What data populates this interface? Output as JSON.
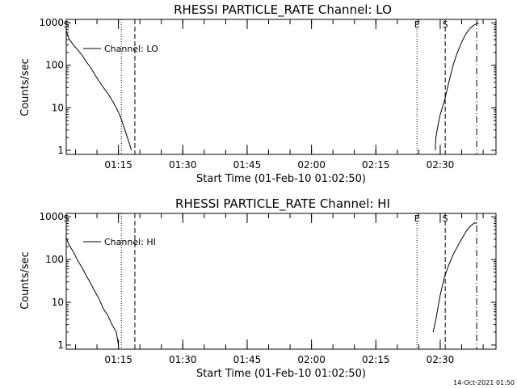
{
  "chart_data": [
    {
      "type": "line",
      "title": "RHESSI PARTICLE_RATE Channel: LO",
      "xlabel": "Start Time (01-Feb-10 01:02:50)",
      "ylabel": "Counts/sec",
      "ylog": true,
      "xlim": [
        "01:02:50",
        "02:43:00"
      ],
      "ylim": [
        0.8,
        1200
      ],
      "xticks": [
        "01:15",
        "01:30",
        "01:45",
        "02:00",
        "02:15",
        "02:30"
      ],
      "yticks": [
        "1",
        "10",
        "100",
        "1000"
      ],
      "legend": {
        "entries": [
          "Channel: LO"
        ],
        "position": "top-left"
      },
      "series": [
        {
          "name": "Channel: LO",
          "segments": [
            [
              [
                "01:02:50",
                650
              ],
              [
                "01:03:30",
                420
              ],
              [
                "01:04:30",
                300
              ],
              [
                "01:05:30",
                230
              ],
              [
                "01:06:30",
                175
              ],
              [
                "01:07:30",
                120
              ],
              [
                "01:08:30",
                90
              ],
              [
                "01:09:30",
                60
              ],
              [
                "01:10:30",
                42
              ],
              [
                "01:11:30",
                30
              ],
              [
                "01:12:30",
                22
              ],
              [
                "01:13:30",
                15
              ],
              [
                "01:14:30",
                10
              ],
              [
                "01:15:30",
                6
              ],
              [
                "01:16:30",
                3
              ],
              [
                "01:17:30",
                1.5
              ],
              [
                "01:18:00",
                1
              ]
            ],
            [
              [
                "02:28:50",
                1
              ],
              [
                "02:29:00",
                2
              ],
              [
                "02:29:30",
                4
              ],
              [
                "02:30:00",
                7
              ],
              [
                "02:31:00",
                15
              ],
              [
                "02:32:00",
                40
              ],
              [
                "02:33:00",
                100
              ],
              [
                "02:34:00",
                200
              ],
              [
                "02:35:00",
                350
              ],
              [
                "02:36:00",
                550
              ],
              [
                "02:37:00",
                750
              ],
              [
                "02:38:00",
                900
              ],
              [
                "02:39:00",
                1000
              ]
            ]
          ]
        }
      ],
      "markers": [
        {
          "label": "S",
          "time": "01:02:50",
          "style": "dashdot"
        },
        {
          "label": "",
          "time": "01:15:40",
          "style": "dotted"
        },
        {
          "label": "",
          "time": "01:18:50",
          "style": "dashed"
        },
        {
          "label": "E",
          "time": "02:24:35",
          "style": "dotted"
        },
        {
          "label": "S",
          "time": "02:31:10",
          "style": "dashed"
        },
        {
          "label": "",
          "time": "02:38:30",
          "style": "dashdot"
        }
      ]
    },
    {
      "type": "line",
      "title": "RHESSI PARTICLE_RATE Channel: HI",
      "xlabel": "Start Time (01-Feb-10 01:02:50)",
      "ylabel": "Counts/sec",
      "ylog": true,
      "xlim": [
        "01:02:50",
        "02:43:00"
      ],
      "ylim": [
        0.8,
        1200
      ],
      "xticks": [
        "01:15",
        "01:30",
        "01:45",
        "02:00",
        "02:15",
        "02:30"
      ],
      "yticks": [
        "1",
        "10",
        "100",
        "1000"
      ],
      "legend": {
        "entries": [
          "Channel: HI"
        ],
        "position": "top-left"
      },
      "series": [
        {
          "name": "Channel: HI",
          "segments": [
            [
              [
                "01:02:50",
                320
              ],
              [
                "01:03:30",
                220
              ],
              [
                "01:04:30",
                150
              ],
              [
                "01:05:30",
                95
              ],
              [
                "01:06:30",
                65
              ],
              [
                "01:07:30",
                42
              ],
              [
                "01:08:30",
                28
              ],
              [
                "01:09:30",
                18
              ],
              [
                "01:10:30",
                12
              ],
              [
                "01:11:30",
                7
              ],
              [
                "01:12:30",
                5
              ],
              [
                "01:13:30",
                3
              ],
              [
                "01:14:30",
                2
              ],
              [
                "01:15:00",
                1
              ]
            ],
            [
              [
                "02:28:20",
                2
              ],
              [
                "02:29:00",
                4
              ],
              [
                "02:30:00",
                15
              ],
              [
                "02:31:00",
                40
              ],
              [
                "02:32:00",
                75
              ],
              [
                "02:33:00",
                130
              ],
              [
                "02:34:00",
                200
              ],
              [
                "02:35:00",
                300
              ],
              [
                "02:36:00",
                450
              ],
              [
                "02:37:00",
                600
              ],
              [
                "02:38:00",
                720
              ],
              [
                "02:38:30",
                700
              ]
            ]
          ]
        }
      ],
      "markers": [
        {
          "label": "S",
          "time": "01:02:50",
          "style": "dashdot"
        },
        {
          "label": "",
          "time": "01:15:40",
          "style": "dotted"
        },
        {
          "label": "",
          "time": "01:18:50",
          "style": "dashed"
        },
        {
          "label": "E",
          "time": "02:24:35",
          "style": "dotted"
        },
        {
          "label": "S",
          "time": "02:31:10",
          "style": "dashed"
        },
        {
          "label": "",
          "time": "02:38:30",
          "style": "dashdot"
        }
      ]
    }
  ],
  "footer": {
    "timestamp": "14-Oct-2021 01:50"
  },
  "colors": {
    "foreground": "#000000",
    "background": "#ffffff"
  }
}
